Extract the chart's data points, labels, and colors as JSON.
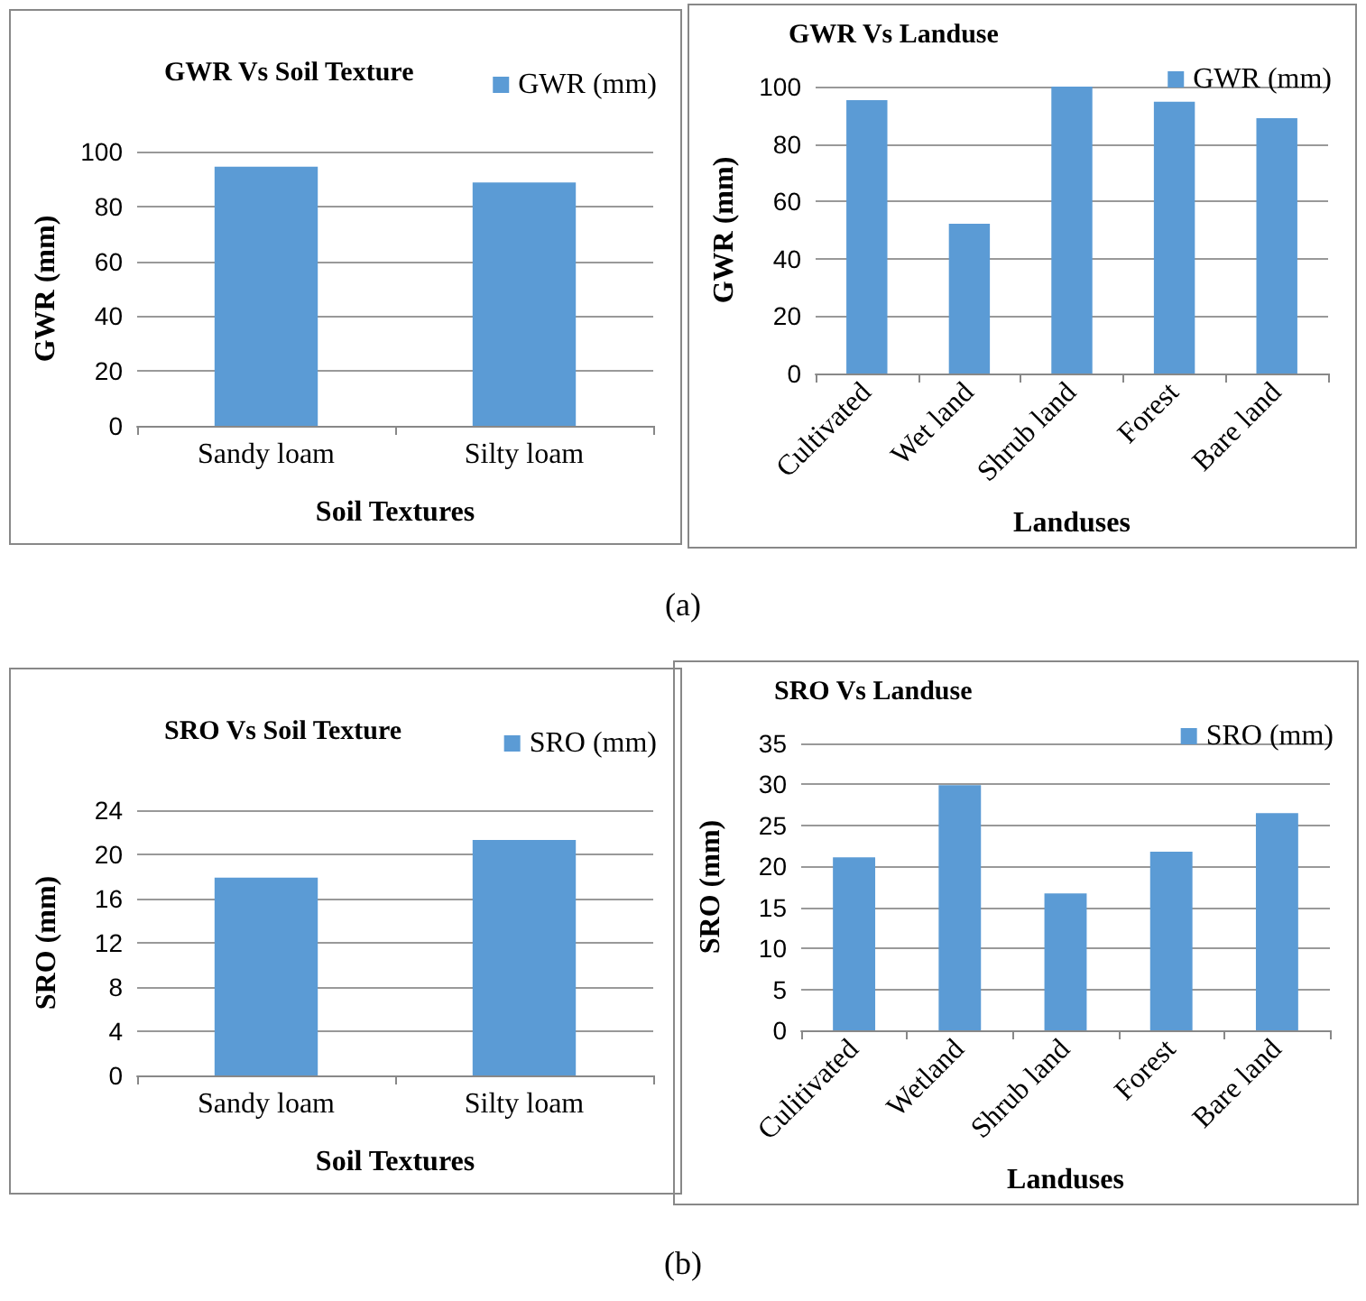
{
  "chart_data": [
    {
      "type": "bar",
      "title": "GWR Vs Soil Texture",
      "xlabel": "Soil Textures",
      "ylabel": "GWR (mm)",
      "categories": [
        "Sandy loam",
        "Silty loam"
      ],
      "series": [
        {
          "name": "GWR (mm)",
          "color": "#5b9bd5",
          "values": [
            94.5,
            88.7
          ]
        }
      ],
      "ylim": [
        0,
        100
      ],
      "yticks": [
        0,
        20,
        40,
        60,
        80,
        100
      ],
      "grid": "y",
      "legend": "top right",
      "annotations": [
        "(a)"
      ]
    },
    {
      "type": "bar",
      "title": "GWR Vs Landuse",
      "xlabel": "Landuses",
      "ylabel": "GWR (mm)",
      "categories": [
        "Cultivated",
        "Wet land",
        "Shrub land",
        "Forest",
        "Bare land"
      ],
      "series": [
        {
          "name": "GWR (mm)",
          "color": "#5b9bd5",
          "values": [
            95.3,
            52.2,
            100,
            94.7,
            89
          ]
        }
      ],
      "ylim": [
        0,
        100
      ],
      "yticks": [
        0,
        20,
        40,
        60,
        80,
        100
      ],
      "grid": "y",
      "legend": "top right"
    },
    {
      "type": "bar",
      "title": "SRO Vs Soil Texture",
      "xlabel": "Soil Textures",
      "ylabel": "SRO (mm)",
      "categories": [
        "Sandy loam",
        "Silty loam"
      ],
      "series": [
        {
          "name": "SRO (mm)",
          "color": "#5b9bd5",
          "values": [
            17.9,
            21.3
          ]
        }
      ],
      "ylim": [
        0,
        24
      ],
      "yticks": [
        0,
        4,
        8,
        12,
        16,
        20,
        24
      ],
      "grid": "y",
      "legend": "top right",
      "annotations": [
        "(b)"
      ]
    },
    {
      "type": "bar",
      "title": "SRO Vs Landuse",
      "xlabel": "Landuses",
      "ylabel": "SRO (mm)",
      "categories": [
        "Culitivated",
        "Wetland",
        "Shrub land",
        "Forest",
        "Bare land"
      ],
      "series": [
        {
          "name": "SRO (mm)",
          "color": "#5b9bd5",
          "values": [
            21.1,
            29.9,
            16.7,
            21.8,
            26.5
          ]
        }
      ],
      "ylim": [
        0,
        35
      ],
      "yticks": [
        0,
        5,
        10,
        15,
        20,
        25,
        30,
        35
      ],
      "grid": "y",
      "legend": "top right"
    }
  ]
}
